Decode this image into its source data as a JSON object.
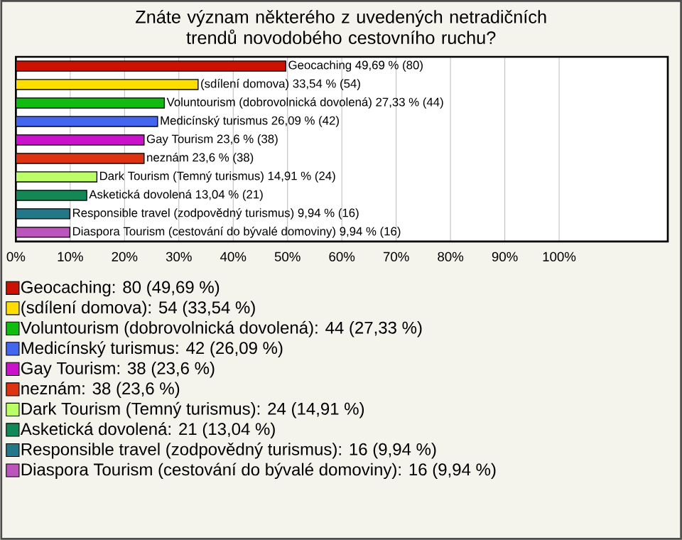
{
  "chart_data": {
    "type": "bar",
    "orientation": "horizontal",
    "stacked": true,
    "title": "Znáte význam některého z uvedených netradičních trendů novodobého cestovního ruchu?",
    "categories": [
      null,
      null,
      null,
      null,
      null,
      null,
      null,
      null,
      null,
      null
    ],
    "series": [
      {
        "name": "Geocaching: 80 (49,69 %)",
        "color": "#cc1100",
        "values": [
          49.69,
          null,
          null,
          null,
          null,
          null,
          null,
          null,
          null,
          null
        ]
      },
      {
        "name": "(sdílení domova): 54 (33,54 %)",
        "color": "#ffdd00",
        "values": [
          null,
          33.54,
          null,
          null,
          null,
          null,
          null,
          null,
          null,
          null
        ]
      },
      {
        "name": "Voluntourism (dobrovolnická dovolená): 44 (27,33 %)",
        "color": "#11bb11",
        "values": [
          null,
          null,
          27.33,
          null,
          null,
          null,
          null,
          null,
          null,
          null
        ]
      },
      {
        "name": "Medicínský turismus: 42 (26,09 %)",
        "color": "#4466ee",
        "values": [
          null,
          null,
          null,
          26.09,
          null,
          null,
          null,
          null,
          null,
          null
        ]
      },
      {
        "name": "Gay Tourism: 38 (23,6 %)",
        "color": "#cc11cc",
        "values": [
          null,
          null,
          null,
          null,
          23.6,
          null,
          null,
          null,
          null,
          null
        ]
      },
      {
        "name": "neznám: 38 (23,6 %)",
        "color": "#dd3311",
        "values": [
          null,
          null,
          null,
          null,
          null,
          23.6,
          null,
          null,
          null,
          null
        ]
      },
      {
        "name": "Dark Tourism (Temný turismus): 24 (14,91 %)",
        "color": "#bbff66",
        "values": [
          null,
          null,
          null,
          null,
          null,
          null,
          14.91,
          null,
          null,
          null
        ]
      },
      {
        "name": "Asketická dovolená: 21 (13,04 %)",
        "color": "#118855",
        "values": [
          null,
          null,
          null,
          null,
          null,
          null,
          null,
          13.04,
          null,
          null
        ]
      },
      {
        "name": "Responsible travel (zodpovědný turismus): 16 (9,94 %)",
        "color": "#227788",
        "values": [
          null,
          null,
          null,
          null,
          null,
          null,
          null,
          null,
          9.94,
          null
        ]
      },
      {
        "name": "Diaspora Tourism (cestování do bývalé domoviny): 16 (9,94 %)",
        "color": "#bb55bb",
        "values": [
          null,
          null,
          null,
          null,
          null,
          null,
          null,
          null,
          null,
          9.94
        ]
      }
    ],
    "value_labels": [
      "Geocaching 49,69 % (80)",
      "(sdílení domova) 33,54 % (54)",
      "Voluntourism (dobrovolnická dovolená) 27,33 % (44)",
      "Medicínský turismus 26,09 % (42)",
      "Gay Tourism 23,6 % (38)",
      "neznám 23,6 % (38)",
      "Dark Tourism (Temný turismus) 14,91 % (24)",
      "Asketická dovolená 13,04 % (21)",
      "Responsible travel (zodpovědný turismus) 9,94 % (16)",
      "Diaspora Tourism (cestování do bývalé domoviny) 9,94 % (16)"
    ],
    "xlim": [
      0,
      120
    ],
    "xticks": [
      {
        "value": 0,
        "label": "0%"
      },
      {
        "value": 10,
        "label": "10%"
      },
      {
        "value": 20,
        "label": "20%"
      },
      {
        "value": 30,
        "label": "30%"
      },
      {
        "value": 40,
        "label": "40%"
      },
      {
        "value": 50,
        "label": "50%"
      },
      {
        "value": 60,
        "label": "60%"
      },
      {
        "value": 70,
        "label": "70%"
      },
      {
        "value": 80,
        "label": "80%"
      },
      {
        "value": 90,
        "label": "90%"
      },
      {
        "value": 100,
        "label": "100%"
      }
    ],
    "grid": "x",
    "legend": "bottom"
  }
}
